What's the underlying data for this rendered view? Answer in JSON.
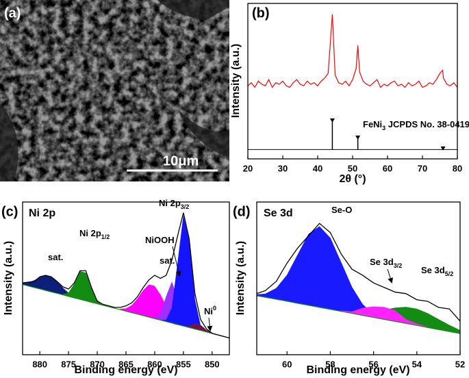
{
  "image": {
    "label": "(a)",
    "scale_bar": "10μm"
  },
  "chart_data": [
    {
      "type": "line",
      "label": "(b)",
      "xlabel": "2θ (°)",
      "ylabel": "Intensity (a.u.)",
      "xlim": [
        20,
        80
      ],
      "xticks": [
        20,
        30,
        40,
        50,
        60,
        70,
        80
      ],
      "ylim": [
        0,
        100
      ],
      "x": [
        20,
        21,
        22,
        23,
        24,
        25,
        26,
        27,
        28,
        29,
        30,
        31,
        32,
        33,
        34,
        35,
        36,
        37,
        38,
        39,
        40,
        41,
        42,
        43,
        44.2,
        45,
        46,
        47,
        48,
        49,
        50,
        51,
        51.5,
        52,
        53,
        54,
        55,
        56,
        57,
        58,
        59,
        60,
        61,
        62,
        63,
        64,
        65,
        66,
        67,
        68,
        69,
        70,
        71,
        72,
        73,
        74,
        75,
        75.8,
        76,
        77,
        78,
        79,
        80
      ],
      "series": [
        {
          "color": "#ff0000",
          "values": [
            47,
            49,
            46,
            50,
            48,
            47,
            51,
            46,
            49,
            48,
            50,
            47,
            46,
            49,
            51,
            48,
            47,
            50,
            48,
            49,
            47,
            50,
            52,
            55,
            93,
            54,
            49,
            48,
            50,
            47,
            51,
            58,
            73,
            56,
            50,
            48,
            47,
            49,
            51,
            46,
            48,
            47,
            49,
            50,
            47,
            48,
            46,
            49,
            47,
            48,
            50,
            46,
            47,
            49,
            48,
            51,
            55,
            57,
            52,
            48,
            47,
            49,
            46
          ]
        }
      ],
      "reference": {
        "x": [
          44.2,
          51.5,
          75.9
        ],
        "values": [
          26,
          15,
          8
        ],
        "baseline": 6
      },
      "annotations": [
        {
          "parts": [
            {
              "t": "FeNi"
            },
            {
              "t": "3",
              "s": "sub"
            },
            {
              "t": " JCPDS No. 38-0419"
            }
          ]
        }
      ]
    },
    {
      "type": "area",
      "label": "(c)",
      "title": "Ni 2p",
      "xlabel": "Binding energy (eV)",
      "ylabel": "Intensity (a.u.)",
      "xlim": [
        883,
        847
      ],
      "xticks": [
        880,
        875,
        870,
        865,
        860,
        855,
        850
      ],
      "ylim": [
        0,
        100
      ],
      "x": [
        883,
        882,
        881,
        880,
        879,
        878,
        877,
        876,
        875,
        874,
        873,
        872,
        871,
        870,
        869,
        868,
        867,
        866,
        865,
        864,
        863,
        862,
        861,
        860,
        859,
        858,
        857,
        856,
        855,
        854,
        853,
        852,
        851,
        850,
        849,
        848,
        847
      ],
      "baseline": [
        46.0,
        45.0,
        44.0,
        43.1,
        42.1,
        41.1,
        40.2,
        39.2,
        38.2,
        37.2,
        36.3,
        35.3,
        34.3,
        33.4,
        32.4,
        31.4,
        30.4,
        29.5,
        28.5,
        27.5,
        26.6,
        25.6,
        24.6,
        23.6,
        22.7,
        21.7,
        20.7,
        19.7,
        18.8,
        17.8,
        16.8,
        15.9,
        14.9,
        13.9,
        12.9,
        11.9,
        11.0
      ],
      "baseline_color": "#1a8a1a",
      "envelope": {
        "color": "#000000",
        "values": [
          47,
          47.5,
          48,
          51,
          52,
          51,
          48,
          44.5,
          43,
          47,
          55,
          55,
          44,
          35,
          33,
          32,
          31,
          31,
          32,
          34,
          38,
          44,
          49,
          52,
          50,
          52,
          62,
          78,
          93,
          76,
          40,
          23,
          17,
          14,
          13,
          12,
          11
        ]
      },
      "series": [
        {
          "color": "#0c1f7a",
          "x": [
            883,
            882,
            881,
            880,
            879,
            878,
            877,
            876,
            875,
            874
          ],
          "values": [
            46.8,
            47.2,
            48.6,
            50.6,
            51.8,
            50.8,
            47.7,
            43.8,
            40.4,
            38.0
          ]
        },
        {
          "color": "#128c12",
          "x": [
            876,
            875,
            874,
            873,
            872,
            871,
            870,
            869
          ],
          "values": [
            39.5,
            40.5,
            46.4,
            54.6,
            53.6,
            43.5,
            35.7,
            32.7
          ]
        },
        {
          "color": "#ff00ff",
          "x": [
            866,
            865,
            864,
            863,
            862,
            861,
            860,
            859,
            858,
            857,
            856,
            855
          ],
          "values": [
            30.0,
            30.2,
            32.3,
            36.7,
            42.1,
            45.9,
            44.9,
            39.2,
            31.8,
            25.5,
            21.4,
            19.3
          ]
        },
        {
          "color": "#9b30ff",
          "x": [
            860,
            859,
            858,
            857,
            856,
            855,
            854
          ],
          "values": [
            23.9,
            26.4,
            38.1,
            47.7,
            36.1,
            22.5,
            18.1
          ]
        },
        {
          "color": "#1414ff",
          "x": [
            859,
            858,
            857,
            856,
            855,
            854,
            853,
            852,
            851
          ],
          "values": [
            22.7,
            22.7,
            30.6,
            60.1,
            91.0,
            74.3,
            36.1,
            18.7,
            15.1
          ]
        },
        {
          "color": "#6e1446",
          "x": [
            854,
            853,
            852,
            851,
            850
          ],
          "values": [
            19.1,
            20.3,
            19.4,
            16.2,
            14.1
          ]
        }
      ],
      "annotations": [
        {
          "parts": [
            {
              "t": "sat."
            }
          ]
        },
        {
          "parts": [
            {
              "t": "Ni 2p"
            },
            {
              "t": "1/2",
              "s": "sub"
            }
          ]
        },
        {
          "parts": [
            {
              "t": "sat."
            }
          ]
        },
        {
          "parts": [
            {
              "t": "NiOOH"
            }
          ]
        },
        {
          "parts": [
            {
              "t": "Ni 2p"
            },
            {
              "t": "3/2",
              "s": "sub"
            }
          ]
        },
        {
          "parts": [
            {
              "t": "Ni"
            },
            {
              "t": "0",
              "s": "sup"
            }
          ]
        }
      ]
    },
    {
      "type": "area",
      "label": "(d)",
      "title": "Se 3d",
      "xlabel": "Binding energy (eV)",
      "ylabel": "Intensity (a.u.)",
      "xlim": [
        61.4,
        52
      ],
      "xticks": [
        60,
        58,
        56,
        54,
        52
      ],
      "ylim": [
        0,
        100
      ],
      "x": [
        61.4,
        61,
        60.5,
        60,
        59.5,
        59,
        58.5,
        58,
        57.5,
        57,
        56.5,
        56,
        55.5,
        55,
        54.5,
        54,
        53.5,
        53,
        52.5,
        52
      ],
      "baseline": [
        38.6,
        37.6,
        36.3,
        35.0,
        33.6,
        32.3,
        31.0,
        29.7,
        28.4,
        27.1,
        25.7,
        24.4,
        23.1,
        21.8,
        20.5,
        19.2,
        17.8,
        16.5,
        15.2,
        13.9
      ],
      "baseline_color": "#1a8a1a",
      "envelope": {
        "color": "#000000",
        "values": [
          40,
          42,
          48,
          60,
          70,
          78,
          86,
          80,
          66,
          56,
          52,
          47,
          44,
          41,
          40,
          36,
          35,
          31,
          30,
          22
        ]
      },
      "series": [
        {
          "color": "#1a1aff",
          "x": [
            61.4,
            61,
            60.5,
            60,
            59.5,
            59,
            58.5,
            58,
            57.5,
            57,
            56.5,
            56,
            55.5
          ],
          "values": [
            39.4,
            39.9,
            43.5,
            52.2,
            65.7,
            79.1,
            84.0,
            76.5,
            60.5,
            44.3,
            32.9,
            26.7,
            23.7
          ]
        },
        {
          "color": "#128c12",
          "x": [
            57,
            56.5,
            56,
            55.5,
            55,
            54.5,
            54,
            53.5,
            53,
            52.5,
            52
          ],
          "values": [
            27.8,
            27.5,
            28.3,
            29.3,
            30.7,
            31.2,
            30.0,
            27.1,
            23.2,
            19.4,
            16.0
          ]
        },
        {
          "color": "#ff22ff",
          "x": [
            57.5,
            57,
            56.5,
            56,
            55.5,
            55,
            54.5,
            54,
            53.5
          ],
          "values": [
            28.8,
            28.2,
            30.6,
            31.5,
            31.1,
            28.9,
            23.1,
            20.3,
            18.2
          ]
        }
      ],
      "annotations": [
        {
          "parts": [
            {
              "t": "Se-O"
            }
          ]
        },
        {
          "parts": [
            {
              "t": "Se 3d"
            },
            {
              "t": "3/2",
              "s": "sub"
            }
          ]
        },
        {
          "parts": [
            {
              "t": "Se 3d"
            },
            {
              "t": "5/2",
              "s": "sub"
            }
          ]
        }
      ]
    }
  ]
}
